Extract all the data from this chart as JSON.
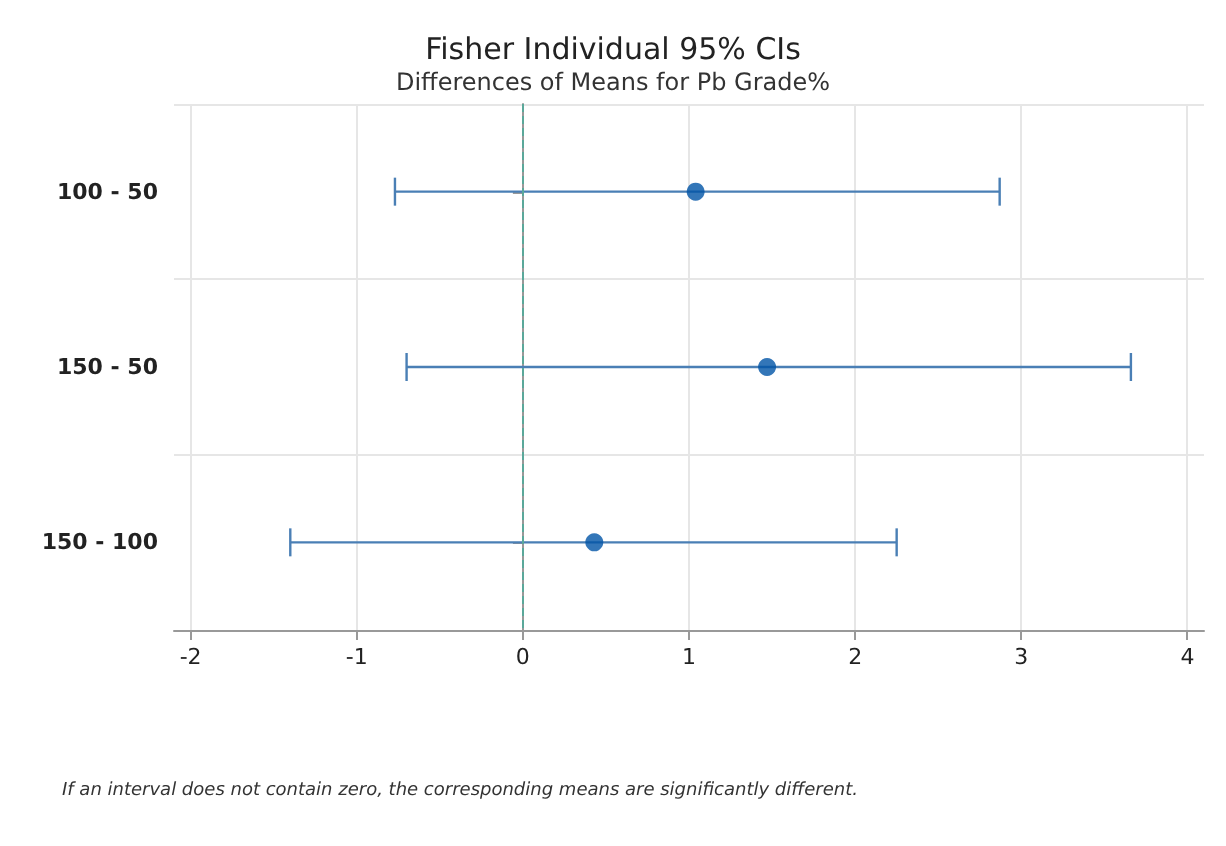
{
  "chart_data": {
    "type": "scatter",
    "orientation": "horizontal",
    "title": "Fisher Individual 95% CIs",
    "subtitle": "Differences of Means for Pb Grade%",
    "categories": [
      "100 - 50",
      "150 - 50",
      "150 - 100"
    ],
    "values": [
      1.04,
      1.47,
      0.43
    ],
    "errors": [
      [
        -0.77,
        2.87
      ],
      [
        -0.7,
        3.66
      ],
      [
        -1.4,
        2.25
      ]
    ],
    "color": "#0054a6",
    "xlim": [
      -2.1,
      4.1
    ],
    "xticks": [
      -2,
      -1,
      0,
      1,
      2,
      3,
      4
    ],
    "grid": true,
    "marker": "circle",
    "ref_lines": [
      {
        "axis": "x",
        "value": 0,
        "color": "#5aa89a",
        "line_style": "dashed"
      }
    ],
    "annotations": [
      "If an interval does not contain zero, the corresponding means are significantly different."
    ]
  }
}
